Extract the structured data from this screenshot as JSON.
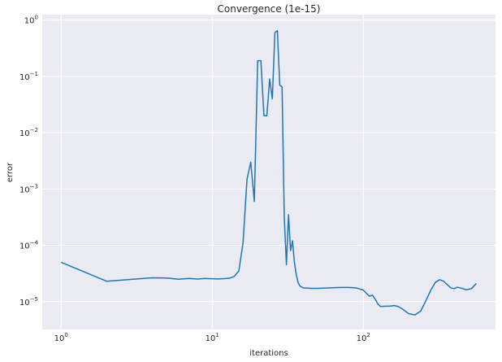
{
  "chart_data": {
    "type": "line",
    "title": "Convergence (1e-15)",
    "xlabel": "iterations",
    "ylabel": "error",
    "xscale": "log",
    "yscale": "log",
    "xlim": [
      0.75,
      750
    ],
    "ylim": [
      3.2e-06,
      1.25
    ],
    "grid": true,
    "background": "#eaeaf2",
    "line_color": "#1f77b4",
    "x_ticks": [
      {
        "value": 1,
        "base": "10",
        "exp": "0"
      },
      {
        "value": 10,
        "base": "10",
        "exp": "1"
      },
      {
        "value": 100,
        "base": "10",
        "exp": "2"
      }
    ],
    "y_ticks": [
      {
        "value": 1e-05,
        "base": "10",
        "exp": "−5"
      },
      {
        "value": 0.0001,
        "base": "10",
        "exp": "−4"
      },
      {
        "value": 0.001,
        "base": "10",
        "exp": "−3"
      },
      {
        "value": 0.01,
        "base": "10",
        "exp": "−2"
      },
      {
        "value": 0.1,
        "base": "10",
        "exp": "−1"
      },
      {
        "value": 1,
        "base": "10",
        "exp": "0"
      }
    ],
    "series": [
      {
        "x": [
          1,
          2,
          3,
          4,
          5,
          6,
          7,
          8,
          9,
          10,
          11,
          12,
          13,
          14,
          15,
          16,
          17,
          18,
          19,
          20,
          21,
          22,
          23,
          24,
          25,
          26,
          27,
          28,
          29,
          30,
          31,
          32,
          33,
          34,
          35,
          36,
          37,
          38,
          40,
          45,
          50,
          60,
          70,
          80,
          90,
          100,
          105,
          110,
          115,
          120,
          125,
          130,
          140,
          150,
          160,
          170,
          180,
          200,
          220,
          240,
          260,
          280,
          300,
          320,
          340,
          360,
          380,
          400,
          420,
          450,
          480,
          520,
          560
        ],
        "y": [
          5e-05,
          2.3e-05,
          2.5e-05,
          2.65e-05,
          2.62e-05,
          2.5e-05,
          2.58e-05,
          2.52e-05,
          2.58e-05,
          2.55e-05,
          2.53e-05,
          2.56e-05,
          2.6e-05,
          2.8e-05,
          3.5e-05,
          0.00011,
          0.0015,
          0.003,
          0.0006,
          0.19,
          0.19,
          0.02,
          0.02,
          0.09,
          0.04,
          0.6,
          0.65,
          0.07,
          0.065,
          0.0003,
          4.5e-05,
          0.00035,
          8e-05,
          0.00012,
          5e-05,
          3e-05,
          2.2e-05,
          1.9e-05,
          1.75e-05,
          1.72e-05,
          1.72e-05,
          1.75e-05,
          1.78e-05,
          1.78e-05,
          1.75e-05,
          1.6e-05,
          1.4e-05,
          1.25e-05,
          1.3e-05,
          1.1e-05,
          9e-06,
          8.2e-06,
          8.3e-06,
          8.3e-06,
          8.5e-06,
          8.2e-06,
          7.5e-06,
          6.1e-06,
          5.8e-06,
          6.8e-06,
          1.05e-05,
          1.6e-05,
          2.2e-05,
          2.45e-05,
          2.3e-05,
          2e-05,
          1.75e-05,
          1.7e-05,
          1.8e-05,
          1.72e-05,
          1.62e-05,
          1.7e-05,
          2.1e-05
        ]
      }
    ]
  }
}
